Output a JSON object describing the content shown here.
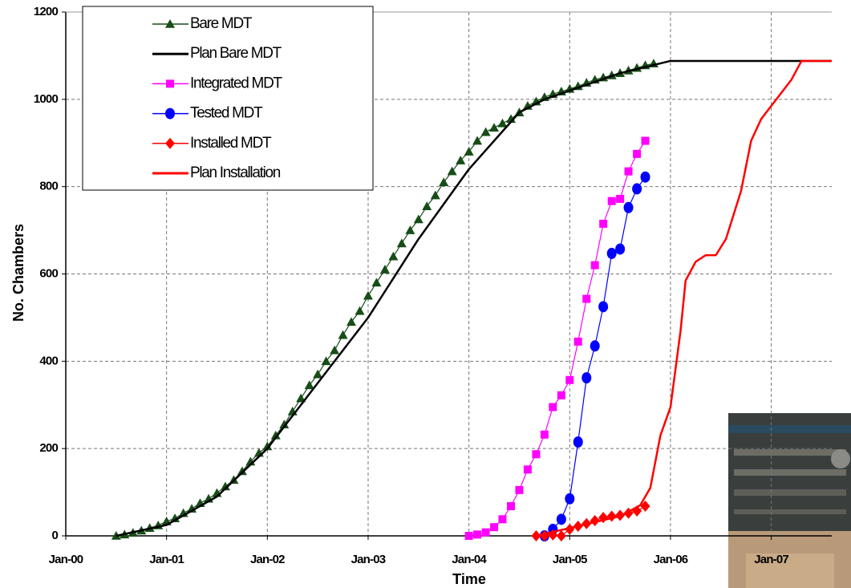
{
  "chart_data": {
    "type": "line",
    "xlabel": "Time",
    "ylabel": "No. Chambers",
    "xlim": [
      2000,
      2007.6
    ],
    "ylim": [
      0,
      1200
    ],
    "xticks": [
      {
        "value": 2000,
        "label": "Jan-00"
      },
      {
        "value": 2001,
        "label": "Jan-01"
      },
      {
        "value": 2002,
        "label": "Jan-02"
      },
      {
        "value": 2003,
        "label": "Jan-03"
      },
      {
        "value": 2004,
        "label": "Jan-04"
      },
      {
        "value": 2005,
        "label": "Jan-05"
      },
      {
        "value": 2006,
        "label": "Jan-06"
      },
      {
        "value": 2007,
        "label": "Jan-07"
      }
    ],
    "yticks": [
      0,
      200,
      400,
      600,
      800,
      1000,
      1200
    ],
    "grid": true,
    "legend": "upper left",
    "series": [
      {
        "name": "Bare MDT",
        "color": "#174d17",
        "marker": "triangle",
        "x": [
          2000.5,
          2000.583,
          2000.667,
          2000.75,
          2000.833,
          2000.917,
          2001,
          2001.083,
          2001.167,
          2001.25,
          2001.333,
          2001.417,
          2001.5,
          2001.583,
          2001.667,
          2001.75,
          2001.833,
          2001.917,
          2002,
          2002.083,
          2002.167,
          2002.25,
          2002.333,
          2002.417,
          2002.5,
          2002.583,
          2002.667,
          2002.75,
          2002.833,
          2002.917,
          2003,
          2003.083,
          2003.167,
          2003.25,
          2003.333,
          2003.417,
          2003.5,
          2003.583,
          2003.667,
          2003.75,
          2003.833,
          2003.917,
          2004,
          2004.083,
          2004.167,
          2004.25,
          2004.333,
          2004.417,
          2004.5,
          2004.583,
          2004.667,
          2004.75,
          2004.833,
          2004.917,
          2005,
          2005.083,
          2005.167,
          2005.25,
          2005.333,
          2005.417,
          2005.5,
          2005.583,
          2005.667,
          2005.75,
          2005.833
        ],
        "values": [
          0,
          3,
          7,
          12,
          18,
          24,
          33,
          40,
          52,
          62,
          75,
          85,
          98,
          113,
          128,
          148,
          170,
          190,
          205,
          230,
          255,
          285,
          315,
          345,
          370,
          400,
          425,
          460,
          490,
          515,
          550,
          580,
          610,
          640,
          670,
          700,
          725,
          755,
          780,
          810,
          835,
          860,
          880,
          905,
          925,
          935,
          945,
          955,
          970,
          985,
          995,
          1005,
          1012,
          1018,
          1024,
          1030,
          1038,
          1045,
          1050,
          1055,
          1060,
          1066,
          1072,
          1078,
          1082
        ]
      },
      {
        "name": "Plan Bare MDT",
        "color": "#000000",
        "marker": "none",
        "x": [
          2000.5,
          2001,
          2001.5,
          2002,
          2002.5,
          2003,
          2003.5,
          2004,
          2004.5,
          2004.75,
          2005,
          2005.5,
          2006,
          2007,
          2007.6
        ],
        "values": [
          0,
          25,
          90,
          200,
          350,
          500,
          680,
          840,
          970,
          1000,
          1020,
          1060,
          1088,
          1088,
          1088
        ]
      },
      {
        "name": "Integrated MDT",
        "color": "#ff00ff",
        "marker": "square",
        "x": [
          2004,
          2004.083,
          2004.167,
          2004.25,
          2004.333,
          2004.417,
          2004.5,
          2004.583,
          2004.667,
          2004.75,
          2004.833,
          2004.917,
          2005,
          2005.083,
          2005.167,
          2005.25,
          2005.333,
          2005.417,
          2005.5,
          2005.583,
          2005.667,
          2005.75
        ],
        "values": [
          0,
          3,
          8,
          20,
          38,
          68,
          105,
          152,
          187,
          232,
          295,
          322,
          357,
          445,
          543,
          620,
          715,
          767,
          772,
          835,
          875,
          905
        ]
      },
      {
        "name": "Tested MDT",
        "color": "#0000ff",
        "marker": "circle",
        "x": [
          2004.75,
          2004.833,
          2004.917,
          2005,
          2005.083,
          2005.167,
          2005.25,
          2005.333,
          2005.417,
          2005.5,
          2005.583,
          2005.667,
          2005.75
        ],
        "values": [
          0,
          15,
          38,
          85,
          215,
          362,
          435,
          525,
          647,
          657,
          752,
          795,
          822
        ]
      },
      {
        "name": "Installed MDT",
        "color": "#ff0000",
        "marker": "diamond",
        "x": [
          2004.667,
          2004.75,
          2004.833,
          2004.917,
          2005,
          2005.083,
          2005.167,
          2005.25,
          2005.333,
          2005.417,
          2005.5,
          2005.583,
          2005.667,
          2005.75
        ],
        "values": [
          0,
          0,
          2,
          0,
          15,
          22,
          28,
          35,
          42,
          45,
          47,
          52,
          57,
          68
        ]
      },
      {
        "name": "Plan Installation",
        "color": "#ff0000",
        "marker": "none",
        "x": [
          2004.667,
          2005.5,
          2005.7,
          2005.8,
          2005.9,
          2006,
          2006.1,
          2006.15,
          2006.25,
          2006.35,
          2006.45,
          2006.55,
          2006.7,
          2006.8,
          2006.9,
          2007.05,
          2007.2,
          2007.3,
          2007.6
        ],
        "values": [
          0,
          45,
          70,
          110,
          230,
          295,
          470,
          585,
          628,
          643,
          643,
          680,
          790,
          905,
          955,
          1000,
          1045,
          1088,
          1088
        ]
      }
    ]
  }
}
